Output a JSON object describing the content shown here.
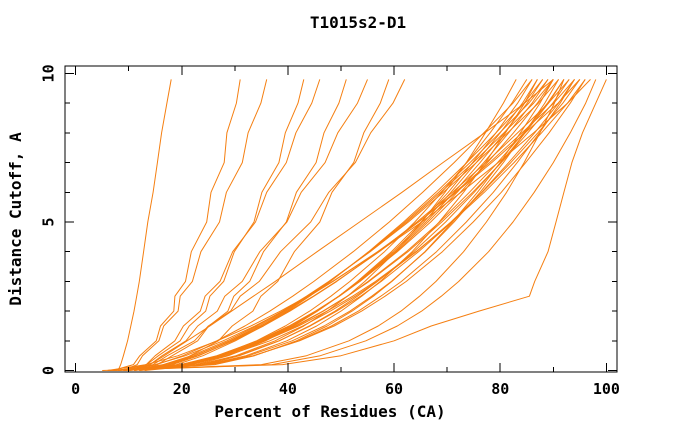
{
  "chart_data": {
    "type": "line",
    "title": "T1015s2-D1",
    "xlabel": "Percent of Residues (CA)",
    "ylabel": "Distance Cutoff, A",
    "background_color": "#ffffff",
    "frame_color": "#000000",
    "line_color": "#f57f11",
    "legend": "none",
    "grid": false,
    "x_axis": {
      "min": -2,
      "max": 102,
      "major_ticks": [
        0,
        20,
        40,
        60,
        80,
        100
      ],
      "major_tick_labels": [
        "0",
        "20",
        "40",
        "60",
        "80",
        "100"
      ],
      "minor_ticks": [
        10,
        30,
        50,
        70,
        90
      ]
    },
    "y_axis": {
      "min": -0.05,
      "max": 10.25,
      "major_ticks": [
        0,
        5,
        10
      ],
      "major_tick_labels": [
        "0",
        "5",
        "10"
      ],
      "minor_ticks": [
        1,
        2,
        3,
        4,
        6,
        7,
        8,
        9
      ]
    },
    "y_levels": [
      0,
      0.2,
      0.5,
      1,
      1.5,
      2,
      2.5,
      3,
      4,
      5,
      6,
      7,
      8,
      9,
      9.8
    ],
    "series": [
      {
        "x": [
          8,
          8.5,
          9,
          9.8,
          10.4,
          11,
          11.5,
          12,
          12.8,
          13.6,
          14.6,
          15.4,
          16.2,
          17.2,
          18
        ]
      },
      {
        "x": [
          7,
          10.9,
          12.1,
          15.2,
          16,
          18.5,
          18.7,
          20.7,
          21.8,
          24.7,
          25.5,
          28,
          28.5,
          30.3,
          31
        ]
      },
      {
        "x": [
          9,
          11.6,
          12.6,
          15.7,
          16.6,
          19.3,
          19.7,
          22,
          23.6,
          27.1,
          28.4,
          31.4,
          32.5,
          34.9,
          36
        ]
      },
      {
        "x": [
          8,
          13.4,
          15.6,
          19.7,
          21.4,
          24.5,
          25.3,
          27.9,
          29.9,
          33.6,
          35.1,
          38.3,
          39.5,
          41.9,
          43
        ]
      },
      {
        "x": [
          10,
          13.3,
          15,
          18.7,
          20.3,
          23.5,
          24.4,
          27.2,
          29.6,
          33.9,
          36,
          39.7,
          41.5,
          44.5,
          46
        ]
      },
      {
        "x": [
          9,
          15.4,
          18.2,
          23,
          25.1,
          28.7,
          29.8,
          32.8,
          35.4,
          39.7,
          41.6,
          45.3,
          46.8,
          49.6,
          51
        ]
      },
      {
        "x": [
          10,
          14,
          16.3,
          20.8,
          23,
          26.7,
          28.1,
          31.4,
          34.7,
          39.8,
          42.5,
          47,
          49.4,
          53.1,
          55
        ]
      },
      {
        "x": [
          11,
          18.3,
          21.6,
          26.9,
          29.5,
          33.4,
          34.9,
          38.1,
          41.2,
          46,
          48.3,
          52.4,
          54.3,
          57.4,
          59
        ]
      },
      {
        "x": [
          10,
          14.6,
          17.3,
          22.4,
          25,
          29.2,
          31,
          34.6,
          38.6,
          44.3,
          47.7,
          52.7,
          55.6,
          59.8,
          62
        ]
      },
      {
        "x": [
          12,
          14,
          16.7,
          21,
          25.3,
          29.4,
          33.5,
          37.6,
          45.5,
          53.5,
          61.5,
          69.2,
          77.1,
          84.6,
          90
        ]
      },
      {
        "x": [
          5,
          39,
          50,
          60,
          67,
          76,
          85.5,
          86.5,
          89,
          90.5,
          92,
          93.5,
          95.5,
          98,
          100
        ]
      },
      {
        "x": [
          6,
          37,
          46.1,
          54.7,
          60.6,
          65.2,
          68.9,
          72.2,
          77.8,
          82.4,
          86.4,
          90,
          93.2,
          96.1,
          98
        ]
      },
      {
        "x": [
          6,
          25.1,
          33.5,
          42.2,
          48.7,
          53.9,
          58.3,
          62.3,
          69.1,
          74.9,
          80.2,
          84.8,
          89.2,
          93.2,
          96
        ]
      },
      {
        "x": [
          7,
          19.8,
          27.2,
          35.6,
          42,
          47.4,
          52.2,
          56.5,
          64.1,
          70.9,
          77,
          82.6,
          87.8,
          92.7,
          96
        ]
      },
      {
        "x": [
          8,
          15,
          20.7,
          27.8,
          33.8,
          39.1,
          44,
          48.5,
          56.9,
          64.6,
          71.7,
          78.4,
          84.7,
          90.9,
          95
        ]
      },
      {
        "x": [
          9,
          21.4,
          28.5,
          36.6,
          42.8,
          48,
          52.7,
          56.8,
          64.2,
          70.7,
          76.6,
          82,
          87.1,
          91.8,
          95
        ]
      },
      {
        "x": [
          7,
          25.4,
          33.5,
          42,
          48.2,
          53.3,
          57.5,
          61.4,
          68,
          73.6,
          78.7,
          83.2,
          87.4,
          91.3,
          94
        ]
      },
      {
        "x": [
          10,
          16.7,
          22.3,
          29.2,
          34.9,
          40.1,
          44.8,
          49.1,
          57.2,
          64.6,
          71.5,
          78,
          84.1,
          90.1,
          94
        ]
      },
      {
        "x": [
          8,
          20.2,
          27.3,
          35.3,
          41.4,
          46.6,
          51.2,
          55.3,
          62.6,
          69,
          74.8,
          80.2,
          85.2,
          89.9,
          93
        ]
      },
      {
        "x": [
          11,
          17.6,
          23,
          29.7,
          35.4,
          40.4,
          44.9,
          49.2,
          57.1,
          64.3,
          71,
          77.3,
          83.3,
          89.1,
          93
        ]
      },
      {
        "x": [
          6,
          35,
          43.5,
          51.5,
          57,
          61.3,
          64.8,
          67.9,
          73.1,
          77.4,
          81.2,
          84.5,
          87.5,
          90.2,
          92
        ]
      },
      {
        "x": [
          9,
          21,
          27.8,
          35.6,
          41.6,
          46.7,
          51.2,
          55.1,
          62.3,
          68.6,
          74.2,
          79.5,
          84.4,
          88.9,
          92
        ]
      },
      {
        "x": [
          10,
          16.5,
          21.8,
          28.5,
          34.1,
          39,
          43.5,
          47.7,
          55.5,
          62.7,
          69.3,
          75.5,
          81.4,
          87.2,
          91
        ]
      },
      {
        "x": [
          7,
          24.8,
          32.6,
          40.8,
          46.8,
          51.7,
          55.8,
          59.5,
          65.9,
          71.3,
          76.2,
          80.6,
          84.6,
          88.4,
          91
        ]
      },
      {
        "x": [
          8,
          19.8,
          26.6,
          34.3,
          40.2,
          45.2,
          49.7,
          53.6,
          60.6,
          66.9,
          72.5,
          77.6,
          82.5,
          87,
          90
        ]
      },
      {
        "x": [
          11,
          17.3,
          22.5,
          29,
          34.5,
          39.3,
          43.7,
          47.8,
          55.4,
          62.4,
          68.8,
          74.9,
          80.7,
          86.3,
          90
        ]
      },
      {
        "x": [
          9,
          20.5,
          27.2,
          34.7,
          40.4,
          45.3,
          49.6,
          53.5,
          60.4,
          66.4,
          71.9,
          76.9,
          81.6,
          86,
          89
        ]
      },
      {
        "x": [
          12,
          18.2,
          23.2,
          29.6,
          34.9,
          39.6,
          43.9,
          47.9,
          55.3,
          62.1,
          68.4,
          74.3,
          79.9,
          85.4,
          89
        ]
      },
      {
        "x": [
          10,
          21.2,
          27.7,
          35,
          40.7,
          45.4,
          49.6,
          53.4,
          60.1,
          66,
          71.3,
          76.2,
          80.8,
          85.1,
          88
        ]
      },
      {
        "x": [
          13,
          19,
          24,
          30.1,
          35.3,
          39.9,
          44.1,
          48,
          55.2,
          61.8,
          67.9,
          73.7,
          79.2,
          84.5,
          88
        ]
      },
      {
        "x": [
          8,
          24.7,
          32.1,
          39.8,
          45.4,
          50,
          53.9,
          57.4,
          63.4,
          68.5,
          73.1,
          77.2,
          81,
          84.6,
          87
        ]
      },
      {
        "x": [
          11,
          21.9,
          28.3,
          35.4,
          40.9,
          45.5,
          49.6,
          53.3,
          59.8,
          65.6,
          70.7,
          75.5,
          80,
          84.2,
          87
        ]
      },
      {
        "x": [
          9,
          15.2,
          20.2,
          26.6,
          31.9,
          36.6,
          40.9,
          44.9,
          52.3,
          59.1,
          65.4,
          71.3,
          76.9,
          82.4,
          86
        ]
      },
      {
        "x": [
          12,
          22.7,
          28.8,
          35.8,
          41.1,
          45.6,
          49.6,
          53.1,
          59.5,
          65.1,
          70.2,
          74.8,
          79.2,
          83.3,
          86
        ]
      },
      {
        "x": [
          10,
          20.8,
          27,
          34.1,
          39.5,
          44.1,
          48.1,
          51.7,
          58.2,
          63.9,
          69,
          73.7,
          78.1,
          82.2,
          85
        ]
      },
      {
        "x": [
          7,
          23.1,
          30.2,
          37.6,
          43,
          47.4,
          51.2,
          54.5,
          60.3,
          65.2,
          69.6,
          73.6,
          77.2,
          80.6,
          83
        ]
      },
      {
        "x": [
          6,
          13.3,
          19.3,
          26.7,
          33,
          38.6,
          43.7,
          48.4,
          57.1,
          65.2,
          72.6,
          79.6,
          86.3,
          92.7,
          97
        ]
      },
      {
        "x": [
          13,
          24.4,
          30.9,
          38.4,
          44,
          48.9,
          53.1,
          56.9,
          63.7,
          69.7,
          75.1,
          80.1,
          84.7,
          89.1,
          92
        ]
      },
      {
        "x": [
          9,
          26.2,
          33.7,
          41.6,
          47.4,
          52.1,
          56.1,
          59.6,
          65.8,
          71,
          75.7,
          80,
          83.8,
          87.5,
          90
        ]
      },
      {
        "x": [
          12,
          23.8,
          30.6,
          38.3,
          44.2,
          49.2,
          53.7,
          57.6,
          64.6,
          70.9,
          76.5,
          81.6,
          86.5,
          91,
          94
        ]
      }
    ]
  }
}
